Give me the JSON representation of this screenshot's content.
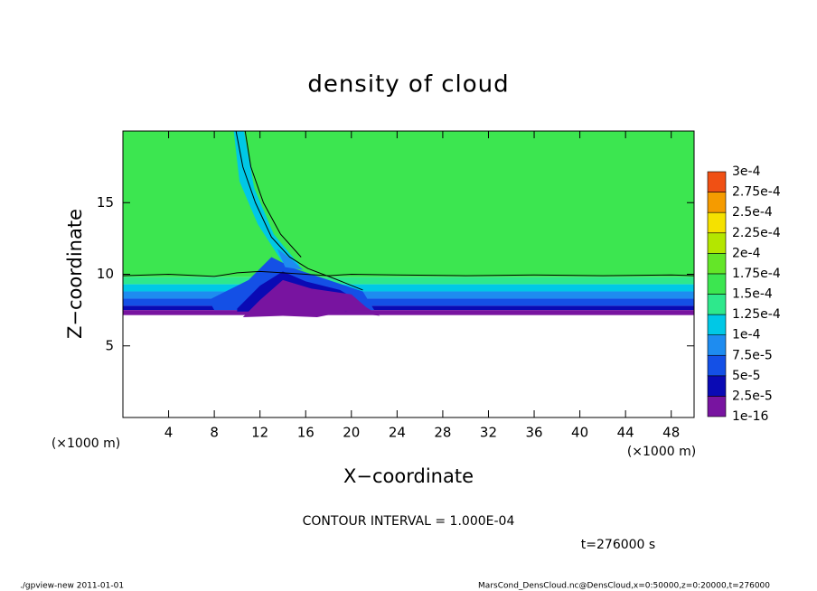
{
  "chart_data": {
    "type": "contour",
    "title": "density of cloud",
    "xlabel": "X−coordinate",
    "ylabel": "Z−coordinate",
    "x_unit": "(×1000 m)",
    "y_unit": "(×1000 m)",
    "xlim": [
      0,
      50
    ],
    "xticks": [
      4,
      8,
      12,
      16,
      20,
      24,
      28,
      32,
      36,
      40,
      44,
      48
    ],
    "ylim": [
      0,
      20
    ],
    "yticks": [
      5,
      10,
      15
    ],
    "levels": [
      {
        "value": 1e-16,
        "label": "1e-16"
      },
      {
        "value": 2.5e-05,
        "label": "2.5e-5"
      },
      {
        "value": 5e-05,
        "label": "5e-5"
      },
      {
        "value": 7.5e-05,
        "label": "7.5e-5"
      },
      {
        "value": 0.0001,
        "label": "1e-4"
      },
      {
        "value": 0.000125,
        "label": "1.25e-4"
      },
      {
        "value": 0.00015,
        "label": "1.5e-4"
      },
      {
        "value": 0.000175,
        "label": "1.75e-4"
      },
      {
        "value": 0.0002,
        "label": "2e-4"
      },
      {
        "value": 0.000225,
        "label": "2.25e-4"
      },
      {
        "value": 0.00025,
        "label": "2.5e-4"
      },
      {
        "value": 0.000275,
        "label": "2.75e-4"
      },
      {
        "value": 0.0003,
        "label": "3e-4"
      }
    ],
    "colors": [
      "#7814a0",
      "#0a0ab4",
      "#1450e6",
      "#1e8cf0",
      "#00c8e6",
      "#2ee88c",
      "#3ce650",
      "#64e628",
      "#b4e600",
      "#f5e100",
      "#f59b00",
      "#f05014",
      "#f08a8a"
    ],
    "contour_interval": "CONTOUR INTERVAL = 1.000E-04",
    "time": "t=276000 s"
  },
  "footer": {
    "left": "./gpview-new   2011-01-01",
    "right": "MarsCond_DensCloud.nc@DensCloud,x=0:50000,z=0:20000,t=276000"
  }
}
